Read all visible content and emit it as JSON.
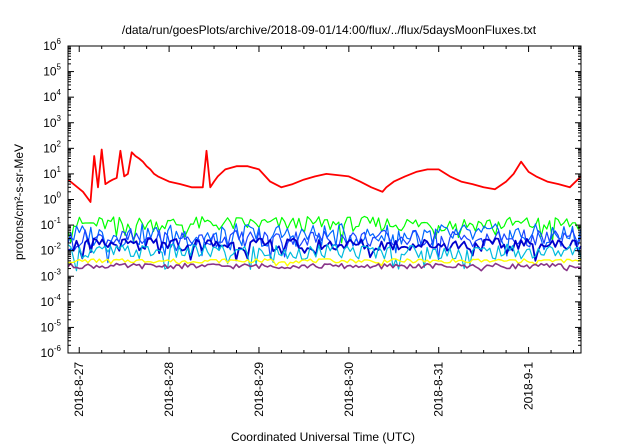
{
  "chart_data": {
    "type": "line",
    "title": "/data/run/goesPlots/archive/2018-09-01/14:00/flux/../flux/5daysMoonFluxes.txt",
    "xlabel": "Coordinated Universal Time (UTC)",
    "ylabel": "protons/cm²-s-sr-MeV",
    "yscale": "log",
    "ylim": [
      1e-06,
      1000000.0
    ],
    "xlim": [
      "2018-08-26T21:00",
      "2018-09-01T14:00"
    ],
    "grid": false,
    "legend": "none",
    "y_ticks": [
      {
        "base": "10",
        "exp": "-6"
      },
      {
        "base": "10",
        "exp": "-5"
      },
      {
        "base": "10",
        "exp": "-4"
      },
      {
        "base": "10",
        "exp": "-3"
      },
      {
        "base": "10",
        "exp": "-2"
      },
      {
        "base": "10",
        "exp": "-1"
      },
      {
        "base": "10",
        "exp": "0"
      },
      {
        "base": "10",
        "exp": "1"
      },
      {
        "base": "10",
        "exp": "2"
      },
      {
        "base": "10",
        "exp": "3"
      },
      {
        "base": "10",
        "exp": "4"
      },
      {
        "base": "10",
        "exp": "5"
      },
      {
        "base": "10",
        "exp": "6"
      }
    ],
    "x_ticks": [
      {
        "label": "2018-8-27",
        "x": "2018-08-27T00:00"
      },
      {
        "label": "2018-8-28",
        "x": "2018-08-28T00:00"
      },
      {
        "label": "2018-8-29",
        "x": "2018-08-29T00:00"
      },
      {
        "label": "2018-8-30",
        "x": "2018-08-30T00:00"
      },
      {
        "label": "2018-8-31",
        "x": "2018-08-31T00:00"
      },
      {
        "label": "2018-9-1",
        "x": "2018-09-01T00:00"
      }
    ],
    "series": [
      {
        "color": "#ff0000",
        "width": 1.8,
        "x": [
          "2018-08-26T21:00",
          "2018-08-27T01:00",
          "2018-08-27T03:00",
          "2018-08-27T04:00",
          "2018-08-27T05:00",
          "2018-08-27T06:00",
          "2018-08-27T07:00",
          "2018-08-27T08:00",
          "2018-08-27T09:00",
          "2018-08-27T10:00",
          "2018-08-27T11:00",
          "2018-08-27T12:00",
          "2018-08-27T13:00",
          "2018-08-27T14:00",
          "2018-08-27T15:00",
          "2018-08-27T16:00",
          "2018-08-27T17:00",
          "2018-08-27T18:00",
          "2018-08-27T19:00",
          "2018-08-27T20:00",
          "2018-08-27T21:00",
          "2018-08-28T00:00",
          "2018-08-28T03:00",
          "2018-08-28T06:00",
          "2018-08-28T09:00",
          "2018-08-28T10:00",
          "2018-08-28T11:00",
          "2018-08-28T12:00",
          "2018-08-28T13:00",
          "2018-08-28T15:00",
          "2018-08-28T18:00",
          "2018-08-28T21:00",
          "2018-08-29T00:00",
          "2018-08-29T03:00",
          "2018-08-29T06:00",
          "2018-08-29T09:00",
          "2018-08-29T12:00",
          "2018-08-29T15:00",
          "2018-08-29T18:00",
          "2018-08-29T21:00",
          "2018-08-30T00:00",
          "2018-08-30T03:00",
          "2018-08-30T06:00",
          "2018-08-30T09:00",
          "2018-08-30T10:00",
          "2018-08-30T12:00",
          "2018-08-30T15:00",
          "2018-08-30T18:00",
          "2018-08-30T21:00",
          "2018-08-31T00:00",
          "2018-08-31T03:00",
          "2018-08-31T06:00",
          "2018-08-31T09:00",
          "2018-08-31T12:00",
          "2018-08-31T15:00",
          "2018-08-31T18:00",
          "2018-08-31T20:00",
          "2018-08-31T22:00",
          "2018-09-01T00:00",
          "2018-09-01T02:00",
          "2018-09-01T05:00",
          "2018-09-01T08:00",
          "2018-09-01T11:00",
          "2018-09-01T14:00"
        ],
        "y": [
          6,
          2,
          0.8,
          50,
          3,
          90,
          4,
          5,
          6,
          7,
          80,
          8,
          10,
          70,
          50,
          40,
          30,
          20,
          15,
          10,
          8,
          5,
          4,
          3,
          3,
          80,
          3,
          5,
          8,
          15,
          20,
          20,
          15,
          5,
          3,
          4,
          6,
          8,
          10,
          9,
          8,
          5,
          3,
          2,
          3,
          5,
          8,
          12,
          15,
          15,
          8,
          5,
          4,
          3,
          2.5,
          5,
          10,
          30,
          12,
          8,
          5,
          4,
          3,
          8
        ]
      },
      {
        "color": "#00ff00",
        "width": 1.2,
        "base": 0.11,
        "spread": 0.3
      },
      {
        "color": "#0066ff",
        "width": 1.2,
        "base": 0.04,
        "spread": 0.45
      },
      {
        "color": "#1a44ff",
        "width": 1.2,
        "base": 0.03,
        "spread": 0.35
      },
      {
        "color": "#0000cc",
        "width": 1.8,
        "base": 0.017,
        "spread": 0.25
      },
      {
        "color": "#00bbdd",
        "width": 1.2,
        "base": 0.009,
        "spread": 0.3
      },
      {
        "color": "#ffff00",
        "width": 1.4,
        "base": 0.004,
        "spread": 0.08
      },
      {
        "color": "#883388",
        "width": 1.6,
        "base": 0.0025,
        "spread": 0.1
      }
    ]
  }
}
